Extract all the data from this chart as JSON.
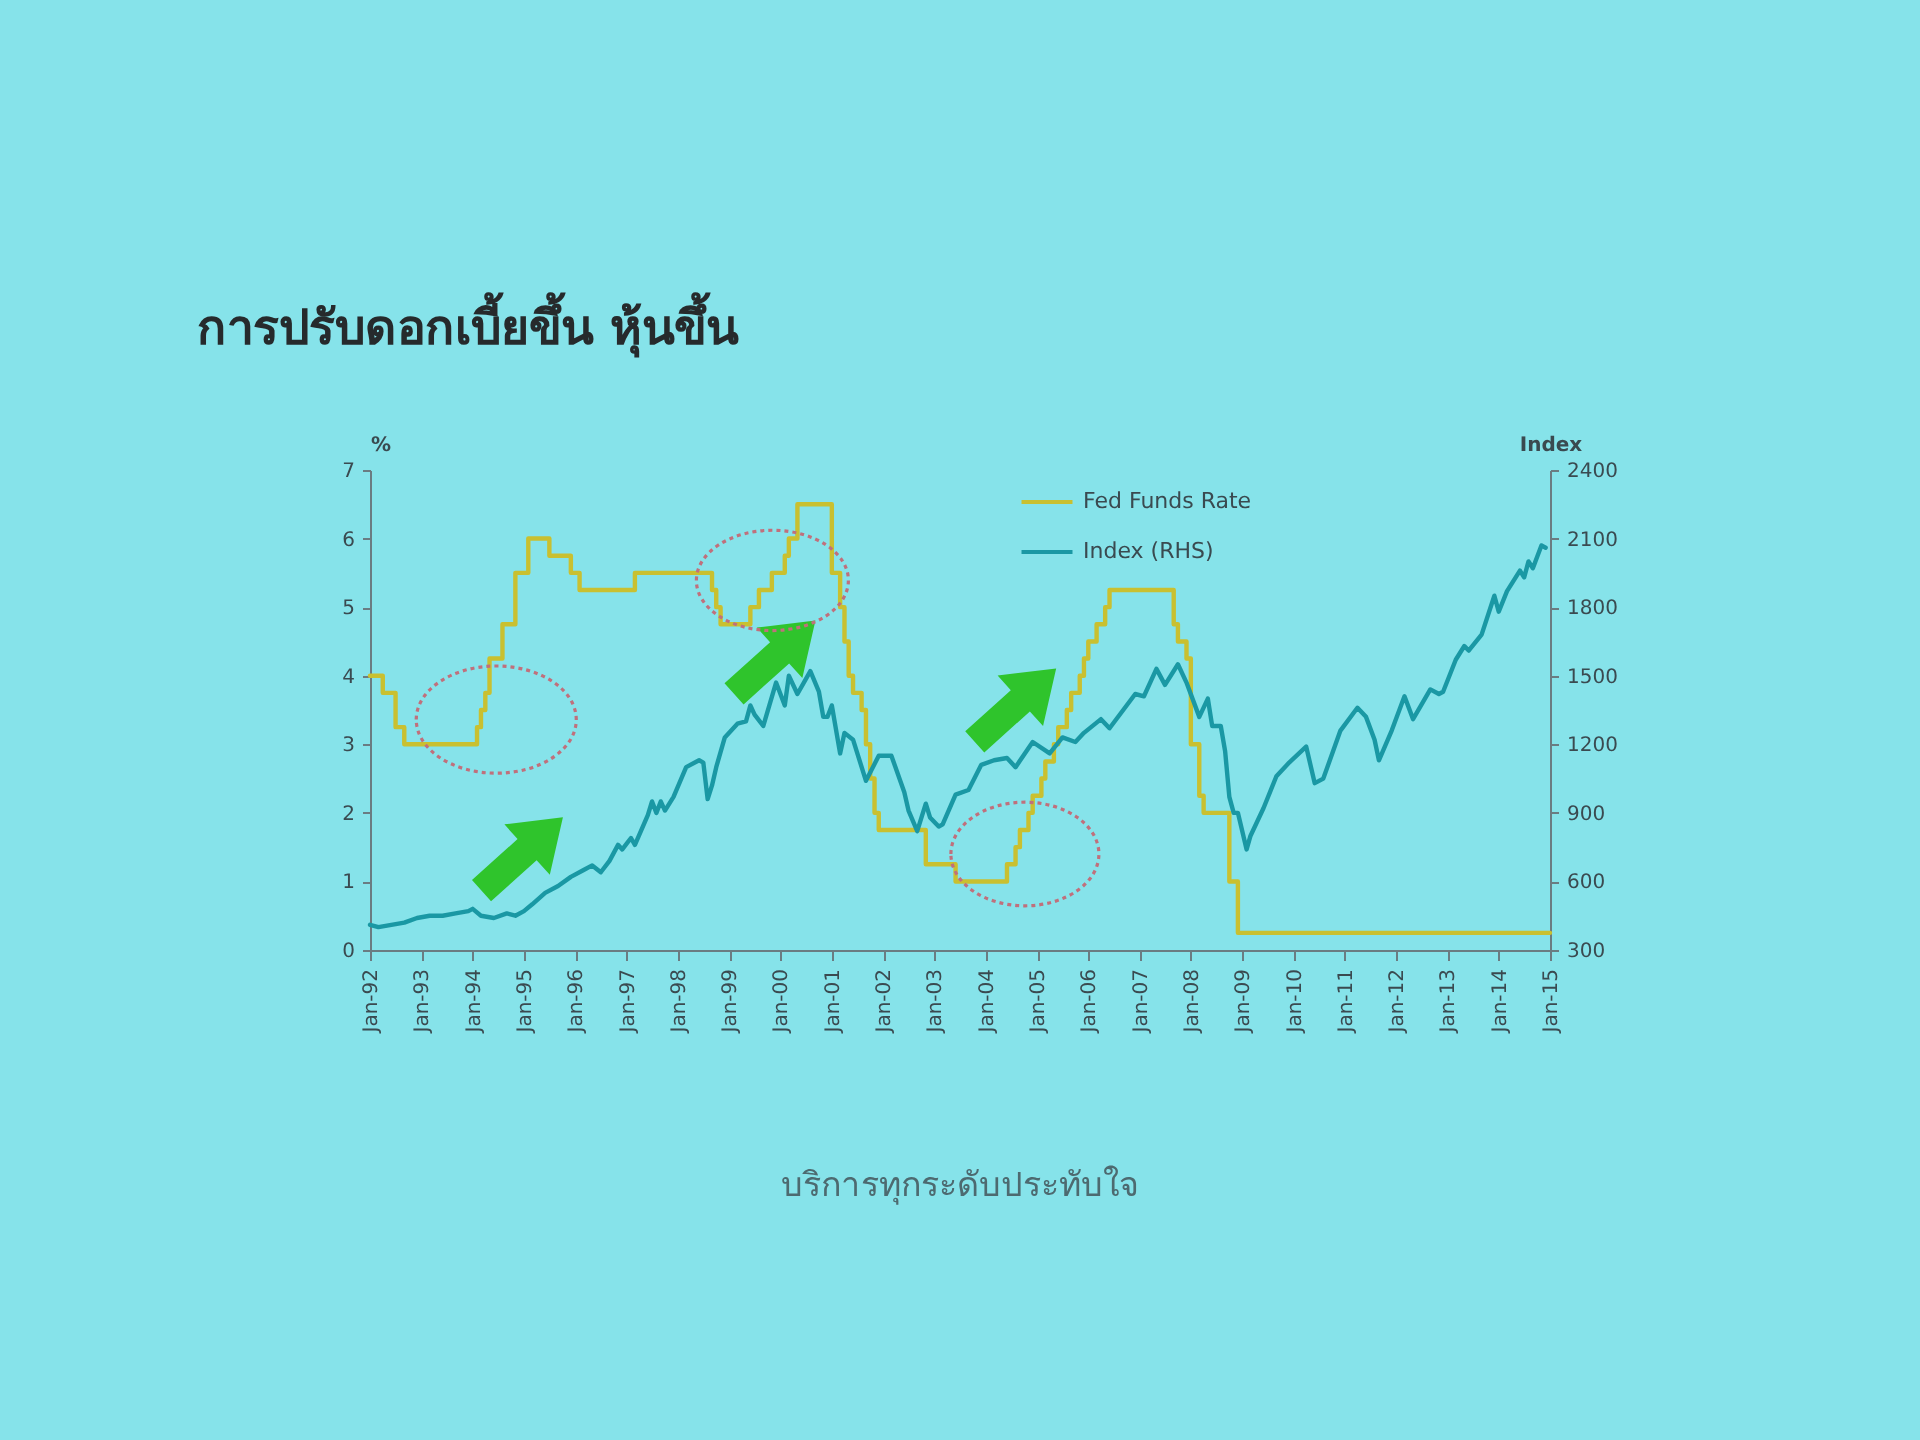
{
  "chart_data": {
    "type": "line",
    "title": "การปรับดอกเบี้ยขึ้น หุ้นขึ้น",
    "ylabel": "%",
    "y2label": "Index",
    "annotations": [
      "บริการทุกระดับประทับใจ"
    ],
    "xlim": [
      "1992-01",
      "2015-01"
    ],
    "xticks": [
      {
        "value": "1992-01",
        "label": "Jan-92"
      },
      {
        "value": "1993-01",
        "label": "Jan-93"
      },
      {
        "value": "1994-01",
        "label": "Jan-94"
      },
      {
        "value": "1995-01",
        "label": "Jan-95"
      },
      {
        "value": "1996-01",
        "label": "Jan-96"
      },
      {
        "value": "1997-01",
        "label": "Jan-97"
      },
      {
        "value": "1998-01",
        "label": "Jan-98"
      },
      {
        "value": "1999-01",
        "label": "Jan-99"
      },
      {
        "value": "2000-01",
        "label": "Jan-00"
      },
      {
        "value": "2001-01",
        "label": "Jan-01"
      },
      {
        "value": "2002-01",
        "label": "Jan-02"
      },
      {
        "value": "2003-01",
        "label": "Jan-03"
      },
      {
        "value": "2004-01",
        "label": "Jan-04"
      },
      {
        "value": "2005-01",
        "label": "Jan-05"
      },
      {
        "value": "2006-01",
        "label": "Jan-06"
      },
      {
        "value": "2007-01",
        "label": "Jan-07"
      },
      {
        "value": "2008-01",
        "label": "Jan-08"
      },
      {
        "value": "2009-01",
        "label": "Jan-09"
      },
      {
        "value": "2010-01",
        "label": "Jan-10"
      },
      {
        "value": "2011-01",
        "label": "Jan-11"
      },
      {
        "value": "2012-01",
        "label": "Jan-12"
      },
      {
        "value": "2013-01",
        "label": "Jan-13"
      },
      {
        "value": "2014-01",
        "label": "Jan-14"
      },
      {
        "value": "2015-01",
        "label": "Jan-15"
      }
    ],
    "ylim": [
      0,
      7
    ],
    "yticks": [
      0,
      1,
      2,
      3,
      4,
      5,
      6,
      7
    ],
    "y2lim": [
      300,
      2400
    ],
    "y2ticks": [
      300,
      600,
      900,
      1200,
      1500,
      1800,
      2100,
      2400
    ],
    "legend": "top right",
    "series": [
      {
        "name": "Fed Funds Rate",
        "type": "step",
        "color": "#c9c030",
        "x": [
          "1992-01",
          "1992-04",
          "1992-07",
          "1992-09",
          "1994-02",
          "1994-03",
          "1994-04",
          "1994-05",
          "1994-08",
          "1994-11",
          "1995-02",
          "1995-07",
          "1995-12",
          "1996-02",
          "1997-03",
          "1998-09",
          "1998-10",
          "1998-11",
          "1999-06",
          "1999-08",
          "1999-11",
          "2000-02",
          "2000-03",
          "2000-05",
          "2001-01",
          "2001-03",
          "2001-04",
          "2001-05",
          "2001-06",
          "2001-08",
          "2001-09",
          "2001-10",
          "2001-11",
          "2001-12",
          "2002-11",
          "2003-06",
          "2004-06",
          "2004-08",
          "2004-09",
          "2004-11",
          "2004-12",
          "2005-02",
          "2005-03",
          "2005-05",
          "2005-06",
          "2005-08",
          "2005-09",
          "2005-11",
          "2005-12",
          "2006-01",
          "2006-03",
          "2006-05",
          "2006-06",
          "2007-09",
          "2007-10",
          "2007-12",
          "2008-01",
          "2008-03",
          "2008-04",
          "2008-10",
          "2008-12",
          "2015-01"
        ],
        "values": [
          4.0,
          3.75,
          3.25,
          3.0,
          3.25,
          3.5,
          3.75,
          4.25,
          4.75,
          5.5,
          6.0,
          5.75,
          5.5,
          5.25,
          5.5,
          5.25,
          5.0,
          4.75,
          5.0,
          5.25,
          5.5,
          5.75,
          6.0,
          6.5,
          5.5,
          5.0,
          4.5,
          4.0,
          3.75,
          3.5,
          3.0,
          2.5,
          2.0,
          1.75,
          1.25,
          1.0,
          1.25,
          1.5,
          1.75,
          2.0,
          2.25,
          2.5,
          2.75,
          3.0,
          3.25,
          3.5,
          3.75,
          4.0,
          4.25,
          4.5,
          4.75,
          5.0,
          5.25,
          4.75,
          4.5,
          4.25,
          3.0,
          2.25,
          2.0,
          1.0,
          0.25,
          0.25
        ]
      },
      {
        "name": "Index (RHS)",
        "axis": "y2",
        "color": "#1a98a4",
        "x": [
          "1992-01",
          "1992-03",
          "1992-06",
          "1992-09",
          "1992-12",
          "1993-03",
          "1993-06",
          "1993-09",
          "1993-12",
          "1994-01",
          "1994-03",
          "1994-06",
          "1994-09",
          "1994-11",
          "1995-01",
          "1995-03",
          "1995-06",
          "1995-09",
          "1995-12",
          "1996-03",
          "1996-05",
          "1996-07",
          "1996-09",
          "1996-11",
          "1996-12",
          "1997-02",
          "1997-03",
          "1997-06",
          "1997-07",
          "1997-08",
          "1997-09",
          "1997-10",
          "1997-12",
          "1998-03",
          "1998-06",
          "1998-07",
          "1998-08",
          "1998-09",
          "1998-10",
          "1998-12",
          "1999-03",
          "1999-05",
          "1999-06",
          "1999-07",
          "1999-09",
          "1999-12",
          "2000-02",
          "2000-03",
          "2000-05",
          "2000-08",
          "2000-10",
          "2000-11",
          "2000-12",
          "2001-01",
          "2001-03",
          "2001-04",
          "2001-06",
          "2001-09",
          "2001-12",
          "2002-03",
          "2002-06",
          "2002-07",
          "2002-09",
          "2002-11",
          "2002-12",
          "2003-02",
          "2003-03",
          "2003-06",
          "2003-09",
          "2003-12",
          "2004-03",
          "2004-06",
          "2004-08",
          "2004-12",
          "2005-04",
          "2005-07",
          "2005-10",
          "2005-12",
          "2006-04",
          "2006-06",
          "2006-12",
          "2007-02",
          "2007-05",
          "2007-07",
          "2007-10",
          "2007-12",
          "2008-03",
          "2008-05",
          "2008-06",
          "2008-08",
          "2008-09",
          "2008-10",
          "2008-11",
          "2008-12",
          "2009-02",
          "2009-03",
          "2009-06",
          "2009-09",
          "2009-12",
          "2010-04",
          "2010-06",
          "2010-08",
          "2010-12",
          "2011-04",
          "2011-06",
          "2011-08",
          "2011-09",
          "2011-12",
          "2012-03",
          "2012-05",
          "2012-09",
          "2012-11",
          "2012-12",
          "2013-03",
          "2013-05",
          "2013-06",
          "2013-09",
          "2013-12",
          "2014-01",
          "2014-03",
          "2014-06",
          "2014-07",
          "2014-08",
          "2014-09",
          "2014-11",
          "2014-12"
        ],
        "values": [
          410,
          400,
          410,
          420,
          440,
          450,
          450,
          460,
          470,
          480,
          450,
          440,
          460,
          450,
          470,
          500,
          550,
          580,
          620,
          650,
          670,
          640,
          690,
          760,
          740,
          790,
          760,
          890,
          950,
          900,
          950,
          910,
          970,
          1100,
          1130,
          1120,
          960,
          1020,
          1100,
          1230,
          1290,
          1300,
          1370,
          1330,
          1280,
          1470,
          1370,
          1500,
          1420,
          1520,
          1430,
          1320,
          1320,
          1370,
          1160,
          1250,
          1220,
          1040,
          1150,
          1150,
          990,
          910,
          820,
          940,
          880,
          840,
          850,
          980,
          1000,
          1110,
          1130,
          1140,
          1100,
          1210,
          1160,
          1230,
          1210,
          1250,
          1310,
          1270,
          1420,
          1410,
          1530,
          1460,
          1550,
          1470,
          1320,
          1400,
          1280,
          1280,
          1170,
          970,
          900,
          900,
          740,
          800,
          920,
          1060,
          1120,
          1190,
          1030,
          1050,
          1260,
          1360,
          1320,
          1220,
          1130,
          1260,
          1410,
          1310,
          1440,
          1420,
          1430,
          1570,
          1630,
          1610,
          1680,
          1850,
          1780,
          1870,
          1960,
          1930,
          2000,
          1970,
          2070,
          2060
        ]
      }
    ]
  }
}
